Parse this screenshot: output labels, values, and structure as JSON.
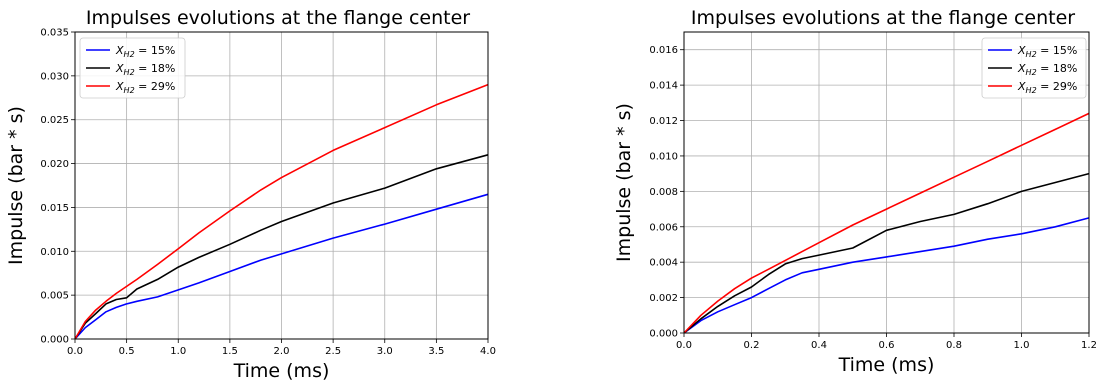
{
  "chart_data": [
    {
      "type": "line",
      "title": "Impulses evolutions at the flange center",
      "xlabel": "Time (ms)",
      "ylabel": "Impulse (bar * s)",
      "xlim": [
        0,
        4.0
      ],
      "ylim": [
        0,
        0.035
      ],
      "xticks": [
        "0.0",
        "0.5",
        "1.0",
        "1.5",
        "2.0",
        "2.5",
        "3.0",
        "3.5",
        "4.0"
      ],
      "yticks": [
        "0.000",
        "0.005",
        "0.010",
        "0.015",
        "0.020",
        "0.025",
        "0.030",
        "0.035"
      ],
      "grid": true,
      "legend_position": "top-left",
      "series": [
        {
          "name": "X_H2 = 15%",
          "sub": "H2",
          "pct": "15%",
          "color": "#0000ff",
          "x": [
            0,
            0.1,
            0.2,
            0.3,
            0.4,
            0.5,
            0.6,
            0.8,
            1.0,
            1.2,
            1.5,
            1.8,
            2.0,
            2.5,
            3.0,
            3.5,
            4.0
          ],
          "y": [
            0,
            0.0013,
            0.0022,
            0.0031,
            0.0036,
            0.004,
            0.0043,
            0.0048,
            0.0056,
            0.0064,
            0.0077,
            0.009,
            0.0097,
            0.0115,
            0.0131,
            0.0148,
            0.0165
          ]
        },
        {
          "name": "X_H2 = 18%",
          "sub": "H2",
          "pct": "18%",
          "color": "#000000",
          "x": [
            0,
            0.1,
            0.2,
            0.3,
            0.4,
            0.5,
            0.6,
            0.8,
            1.0,
            1.2,
            1.5,
            1.8,
            2.0,
            2.5,
            3.0,
            3.5,
            4.0
          ],
          "y": [
            0,
            0.0018,
            0.0029,
            0.004,
            0.0045,
            0.0047,
            0.0057,
            0.0068,
            0.0082,
            0.0093,
            0.0108,
            0.0124,
            0.0134,
            0.0155,
            0.0172,
            0.0194,
            0.021
          ]
        },
        {
          "name": "X_H2 = 29%",
          "sub": "H2",
          "pct": "29%",
          "color": "#ff0000",
          "x": [
            0,
            0.1,
            0.2,
            0.3,
            0.4,
            0.5,
            0.6,
            0.8,
            1.0,
            1.2,
            1.5,
            1.8,
            2.0,
            2.5,
            3.0,
            3.5,
            4.0
          ],
          "y": [
            0,
            0.002,
            0.0033,
            0.0043,
            0.0052,
            0.006,
            0.0068,
            0.0085,
            0.0103,
            0.0121,
            0.0146,
            0.017,
            0.0184,
            0.0215,
            0.0241,
            0.0267,
            0.029
          ]
        }
      ]
    },
    {
      "type": "line",
      "title": "Impulses evolutions at the flange center",
      "xlabel": "Time (ms)",
      "ylabel": "Impulse (bar * s)",
      "xlim": [
        0,
        1.2
      ],
      "ylim": [
        0,
        0.017
      ],
      "xticks": [
        "0.0",
        "0.2",
        "0.4",
        "0.6",
        "0.8",
        "1.0",
        "1.2"
      ],
      "yticks": [
        "0.000",
        "0.002",
        "0.004",
        "0.006",
        "0.008",
        "0.010",
        "0.012",
        "0.014",
        "0.016"
      ],
      "grid": true,
      "legend_position": "top-right",
      "series": [
        {
          "name": "X_H2 = 15%",
          "sub": "H2",
          "pct": "15%",
          "color": "#0000ff",
          "x": [
            0,
            0.05,
            0.1,
            0.15,
            0.2,
            0.25,
            0.3,
            0.35,
            0.4,
            0.5,
            0.6,
            0.7,
            0.8,
            0.9,
            1.0,
            1.1,
            1.2
          ],
          "y": [
            0,
            0.0007,
            0.0012,
            0.0016,
            0.002,
            0.0025,
            0.003,
            0.0034,
            0.0036,
            0.004,
            0.0043,
            0.0046,
            0.0049,
            0.0053,
            0.0056,
            0.006,
            0.0065
          ]
        },
        {
          "name": "X_H2 = 18%",
          "sub": "H2",
          "pct": "18%",
          "color": "#000000",
          "x": [
            0,
            0.05,
            0.1,
            0.15,
            0.2,
            0.25,
            0.3,
            0.35,
            0.4,
            0.5,
            0.6,
            0.7,
            0.8,
            0.9,
            1.0,
            1.1,
            1.2
          ],
          "y": [
            0,
            0.0008,
            0.0015,
            0.0021,
            0.0026,
            0.0033,
            0.0039,
            0.0042,
            0.0044,
            0.0048,
            0.0058,
            0.0063,
            0.0067,
            0.0073,
            0.008,
            0.0085,
            0.009
          ]
        },
        {
          "name": "X_H2 = 29%",
          "sub": "H2",
          "pct": "29%",
          "color": "#ff0000",
          "x": [
            0,
            0.05,
            0.1,
            0.15,
            0.2,
            0.25,
            0.3,
            0.35,
            0.4,
            0.5,
            0.6,
            0.7,
            0.8,
            0.9,
            1.0,
            1.1,
            1.2
          ],
          "y": [
            0,
            0.001,
            0.0018,
            0.0025,
            0.0031,
            0.0036,
            0.0041,
            0.0046,
            0.0051,
            0.0061,
            0.007,
            0.0079,
            0.0088,
            0.0097,
            0.0106,
            0.0115,
            0.0124
          ]
        }
      ]
    }
  ]
}
